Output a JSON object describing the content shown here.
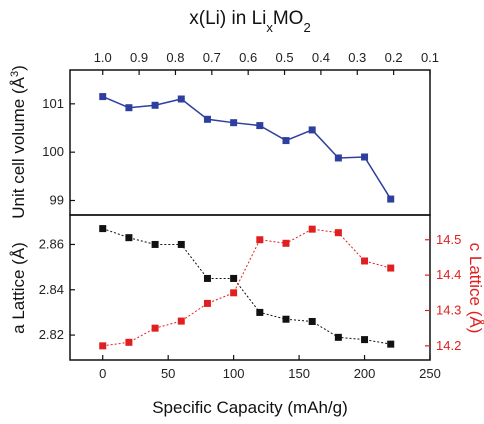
{
  "chart_data": [
    {
      "type": "line",
      "panel": "top",
      "ylabel": "Unit cell volume (Å³)",
      "ylim": [
        98.7,
        101.7
      ],
      "yticks": [
        "99",
        "100",
        "101"
      ],
      "x_top_axis": {
        "title": "x(Li) in LixMO2",
        "tick_labels": [
          "1.0",
          "0.9",
          "0.8",
          "0.7",
          "0.6",
          "0.5",
          "0.4",
          "0.3",
          "0.2",
          "0.1"
        ]
      },
      "series": [
        {
          "color": "#2e3f9e",
          "marker": "square",
          "x": [
            0,
            20,
            40,
            60,
            80,
            100,
            120,
            140,
            160,
            180,
            200,
            220
          ],
          "values": [
            101.15,
            100.92,
            100.97,
            101.1,
            100.68,
            100.61,
            100.55,
            100.24,
            100.46,
            99.88,
            99.9,
            99.03
          ]
        }
      ]
    },
    {
      "type": "line",
      "panel": "bottom",
      "xlabel": "Specific Capacity (mAh/g)",
      "xlim": [
        -25,
        250
      ],
      "xticks": [
        "0",
        "50",
        "100",
        "150",
        "200",
        "250"
      ],
      "ylabel_left": "a Lattice (Å)",
      "ylim_left": [
        2.809,
        2.873
      ],
      "yticks_left": [
        "2.82",
        "2.84",
        "2.86"
      ],
      "ylabel_right": "c Lattice (Å)",
      "ylim_right": [
        14.16,
        14.57
      ],
      "yticks_right": [
        "14.2",
        "14.3",
        "14.4",
        "14.5"
      ],
      "series": [
        {
          "axis": "left",
          "color": "#111111",
          "marker": "square",
          "x": [
            0,
            20,
            40,
            60,
            80,
            100,
            120,
            140,
            160,
            180,
            200,
            220
          ],
          "values": [
            2.867,
            2.863,
            2.86,
            2.86,
            2.845,
            2.845,
            2.83,
            2.827,
            2.826,
            2.819,
            2.818,
            2.816
          ]
        },
        {
          "axis": "right",
          "color": "#e02020",
          "marker": "square",
          "x": [
            0,
            20,
            40,
            60,
            80,
            100,
            120,
            140,
            160,
            180,
            200,
            220
          ],
          "values": [
            14.2,
            14.21,
            14.25,
            14.27,
            14.32,
            14.35,
            14.5,
            14.49,
            14.53,
            14.52,
            14.44,
            14.42
          ]
        }
      ]
    }
  ]
}
